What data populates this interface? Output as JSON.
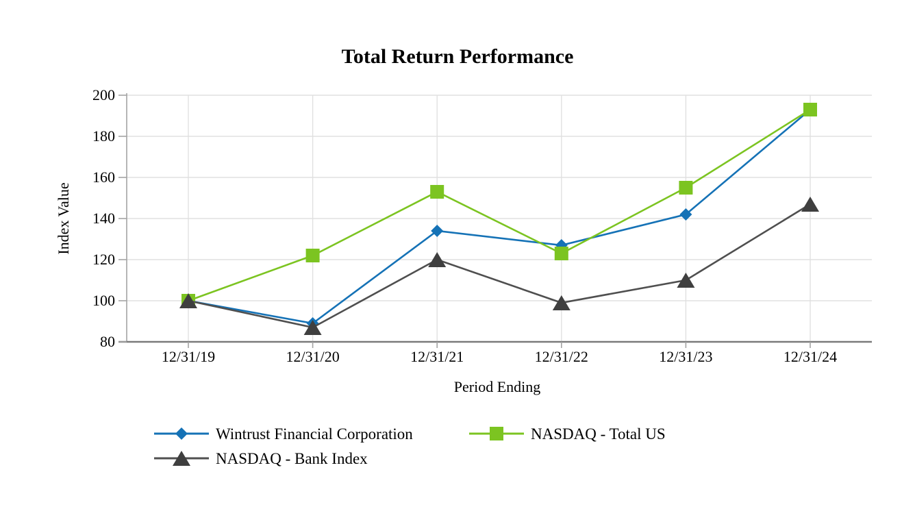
{
  "figure": {
    "background_color": "#ffffff",
    "grid_color": "#e0e0e0",
    "axis_color": "#7a7a7a"
  },
  "chart_data": {
    "type": "line",
    "title": "Total Return Performance",
    "xlabel": "Period Ending",
    "ylabel": "Index Value",
    "categories": [
      "12/31/19",
      "12/31/20",
      "12/31/21",
      "12/31/22",
      "12/31/23",
      "12/31/24"
    ],
    "ylim": [
      80,
      200
    ],
    "ytick_step": 20,
    "yticks": [
      80,
      100,
      120,
      140,
      160,
      180,
      200
    ],
    "grid": true,
    "legend_position": "bottom-left",
    "series": [
      {
        "name": "Wintrust Financial Corporation",
        "marker": "diamond",
        "color": "#1572b6",
        "values": [
          100,
          89,
          134,
          127,
          142,
          193
        ]
      },
      {
        "name": "NASDAQ - Total US",
        "marker": "square",
        "color": "#7cc421",
        "values": [
          100,
          122,
          153,
          123,
          155,
          193
        ]
      },
      {
        "name": "NASDAQ - Bank Index",
        "marker": "triangle",
        "color": "#3f3f3f",
        "line_color": "#4f4f4f",
        "values": [
          100,
          87,
          120,
          99,
          110,
          147
        ]
      }
    ]
  }
}
